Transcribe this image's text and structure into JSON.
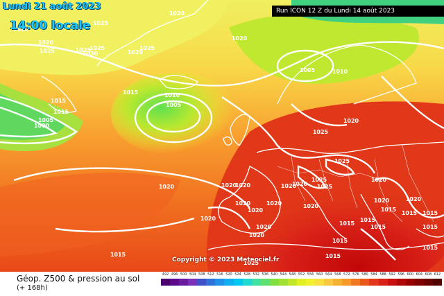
{
  "header": {
    "date": "Lundi 21 août 2023",
    "time": "14:00 locale",
    "run": "Run ICON 12 Z du Lundi 14 août 2023"
  },
  "copyright": "Copyright © 2023 Meteociel.fr",
  "footer": {
    "title": "Géop. Z500 & pression au sol",
    "subtitle": "(+ 168h)"
  },
  "scale": {
    "values": [
      "492",
      "496",
      "500",
      "504",
      "508",
      "512",
      "516",
      "520",
      "524",
      "528",
      "532",
      "536",
      "540",
      "544",
      "548",
      "552",
      "556",
      "560",
      "564",
      "568",
      "572",
      "576",
      "580",
      "584",
      "588",
      "592",
      "596",
      "600",
      "604",
      "608",
      "612"
    ],
    "colors": [
      "#4b0070",
      "#5a0a8a",
      "#6a1aa0",
      "#7a30b8",
      "#4050c8",
      "#3070d8",
      "#2090e8",
      "#10b0f0",
      "#00c8f0",
      "#20d8d0",
      "#40e0a0",
      "#60e070",
      "#80e040",
      "#a0e030",
      "#c0e828",
      "#e0f020",
      "#f0f030",
      "#f8e040",
      "#f8c840",
      "#f8b030",
      "#f89828",
      "#f07820",
      "#e85818",
      "#e03818",
      "#d82018",
      "#c81010",
      "#b00808",
      "#980000",
      "#800000",
      "#680000",
      "#500000"
    ]
  },
  "pressure_labels": [
    "1020",
    "1025",
    "1020",
    "1025",
    "1020",
    "1010",
    "1025",
    "1030",
    "1025",
    "1025",
    "1020",
    "1015",
    "1015",
    "1000",
    "1005",
    "1015",
    "1010",
    "1005",
    "1020",
    "1005",
    "1010",
    "1025",
    "1020",
    "1025",
    "1020",
    "1020",
    "1020",
    "1025",
    "1025",
    "1020",
    "1020",
    "1020",
    "1020",
    "1020",
    "1020",
    "1020",
    "1015",
    "1015",
    "1015",
    "1015",
    "1015",
    "1015",
    "1015",
    "1020",
    "1025",
    "1020",
    "1020",
    "1015",
    "1015",
    "1020",
    "1015",
    "1015"
  ]
}
